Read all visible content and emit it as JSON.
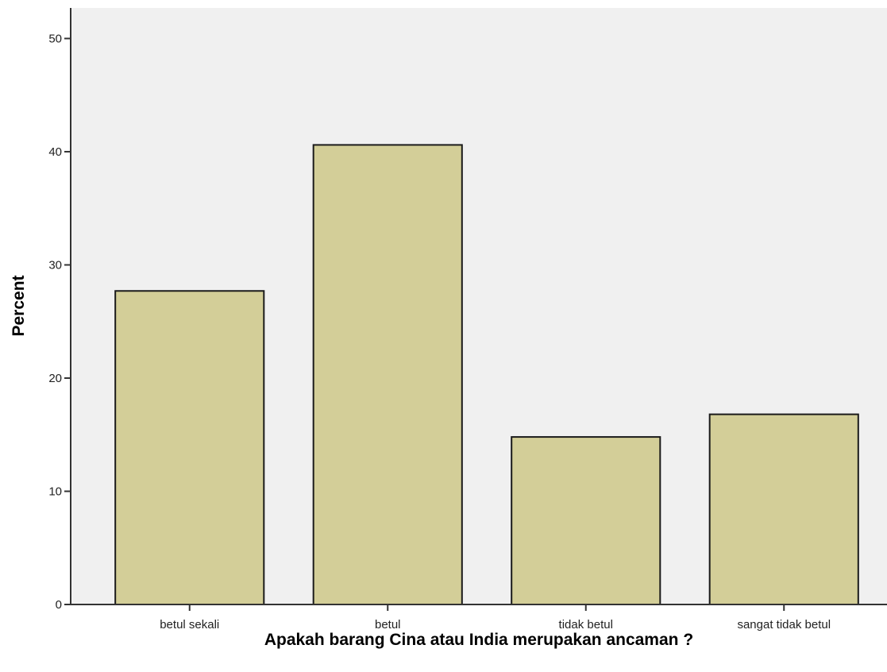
{
  "chart_data": {
    "type": "bar",
    "title": "",
    "xlabel": "Apakah barang Cina atau India merupakan ancaman ?",
    "ylabel": "Percent",
    "categories": [
      "betul sekali",
      "betul",
      "tidak betul",
      "sangat tidak betul"
    ],
    "values": [
      27.7,
      40.6,
      14.8,
      16.8
    ],
    "ylim": [
      0,
      52.7
    ],
    "yticks": [
      0,
      10,
      20,
      30,
      40,
      50
    ],
    "grid": false,
    "legend": "none",
    "colors": {
      "bar_fill": "#d3ce98",
      "bar_stroke": "#1a1a1a",
      "plot_background": "#f0f0f0",
      "axis": "#333333"
    }
  }
}
